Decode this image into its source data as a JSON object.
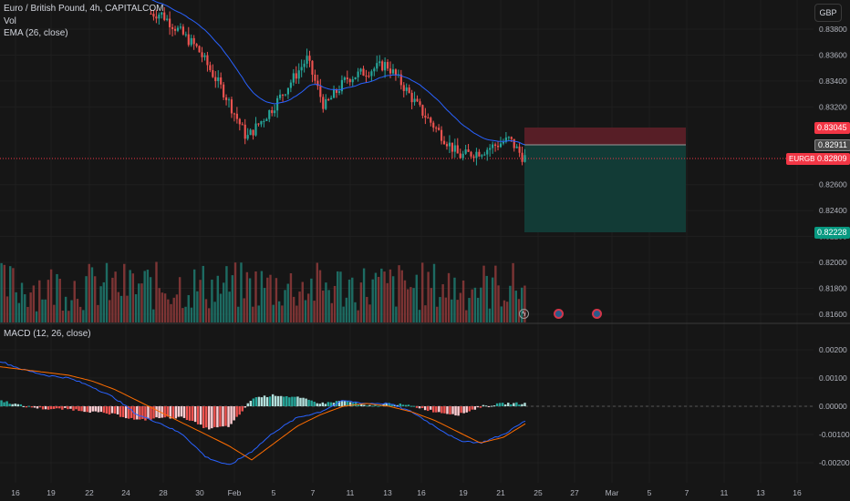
{
  "header": {
    "symbol_line": "Euro / British Pound, 4h, CAPITALCOM",
    "vol_label": "Vol",
    "ema_label": "EMA (26, close)",
    "currency_button": "GBP"
  },
  "macd": {
    "label": "MACD (12, 26, close)"
  },
  "price_axis": {
    "ticks": [
      "0.83800",
      "0.83600",
      "0.83400",
      "0.83200",
      "0.82600",
      "0.82400",
      "0.82200",
      "0.82000",
      "0.81800",
      "0.81600"
    ],
    "tick_values": [
      0.838,
      0.836,
      0.834,
      0.832,
      0.826,
      0.824,
      0.822,
      0.82,
      0.818,
      0.816
    ],
    "labels": {
      "stop": "0.83045",
      "entry": "0.82911",
      "current": "0.82809",
      "target": "0.82228",
      "ticker": "EURGBP"
    }
  },
  "macd_axis": {
    "ticks": [
      "0.00200",
      "0.00100",
      "0.00000",
      "-0.00100",
      "-0.00200"
    ],
    "tick_values": [
      0.002,
      0.001,
      0,
      -0.001,
      -0.002
    ]
  },
  "time_axis": {
    "ticks": [
      "16",
      "19",
      "22",
      "24",
      "28",
      "30",
      "Feb",
      "5",
      "7",
      "11",
      "13",
      "16",
      "19",
      "21",
      "25",
      "27",
      "Mar",
      "5",
      "7",
      "11",
      "13",
      "16"
    ]
  },
  "colors": {
    "up": "#26a69a",
    "down": "#ef5350",
    "ema": "#2962ff",
    "macd_line": "#2962ff",
    "signal_line": "#ff6d00",
    "stop_zone": "#5b1f27",
    "target_zone": "#123d38",
    "background": "#161616"
  },
  "icons": [
    "flash-icon",
    "event-flag-icon",
    "event-flag-icon"
  ],
  "chart_data": [
    {
      "type": "candlestick",
      "title": "Euro / British Pound, 4h, CAPITALCOM",
      "overlay": "EMA (26, close)",
      "ylim": [
        0.8155,
        0.8395
      ],
      "x_ticks": [
        "16",
        "19",
        "22",
        "24",
        "28",
        "30",
        "Feb",
        "5",
        "7",
        "11",
        "13",
        "16",
        "19",
        "21",
        "25",
        "27",
        "Mar",
        "5",
        "7",
        "11",
        "13",
        "16"
      ],
      "checkpoints": [
        {
          "x": "28",
          "close": 0.8392
        },
        {
          "x": "30",
          "close": 0.8365
        },
        {
          "x": "Feb",
          "close": 0.833
        },
        {
          "x": "Feb",
          "close": 0.8296
        },
        {
          "x": "5",
          "close": 0.8319
        },
        {
          "x": "7",
          "close": 0.8357
        },
        {
          "x": "7",
          "close": 0.832
        },
        {
          "x": "11",
          "close": 0.8342
        },
        {
          "x": "13",
          "close": 0.8353
        },
        {
          "x": "16",
          "close": 0.8335
        },
        {
          "x": "16",
          "close": 0.8318
        },
        {
          "x": "19",
          "close": 0.8282
        },
        {
          "x": "21",
          "close": 0.8286
        },
        {
          "x": "21",
          "close": 0.8295
        },
        {
          "x": "21",
          "close": 0.8281
        }
      ],
      "position": {
        "stop": 0.83045,
        "entry": 0.82911,
        "target": 0.82228,
        "current": 0.82809
      }
    },
    {
      "type": "bar",
      "title": "Vol",
      "description_values": "volume histogram, coloured by candle direction"
    },
    {
      "type": "line",
      "title": "MACD (12, 26, close)",
      "ylim": [
        -0.0023,
        0.0026
      ],
      "macd_checkpoints": [
        0.0016,
        0.0013,
        0.0011,
        0.001,
        0.0007,
        0.0003,
        -0.0003,
        -0.0006,
        -0.001,
        -0.0018,
        -0.0021,
        -0.0016,
        -0.0009,
        -0.0004,
        -0.0002,
        0.0002,
        0.0001,
        0.0001,
        -0.0002,
        -0.0007,
        -0.0012,
        -0.0013,
        -0.001,
        -0.0005
      ],
      "signal_checkpoints": [
        0.0014,
        0.0013,
        0.0012,
        0.0011,
        0.0009,
        0.0006,
        0.0002,
        -0.0002,
        -0.0006,
        -0.001,
        -0.0014,
        -0.0019,
        -0.0013,
        -0.0007,
        -0.0003,
        0.0,
        0.0001,
        0.0,
        -0.0002,
        -0.0005,
        -0.0009,
        -0.0013,
        -0.0011,
        -0.0006
      ]
    }
  ]
}
